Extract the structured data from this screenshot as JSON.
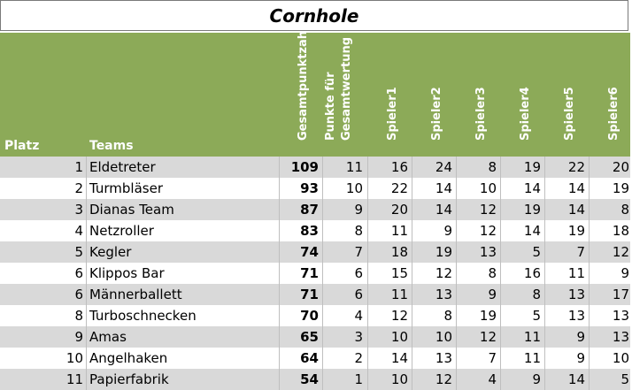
{
  "title": "Cornhole",
  "headers": {
    "platz": "Platz",
    "teams": "Teams",
    "gesamtpunktzahl": "Gesamtpunktzahl",
    "punkte_line1": "Punkte für",
    "punkte_line2": "Gesamtwertung",
    "spieler": [
      "Spieler1",
      "Spieler2",
      "Spieler3",
      "Spieler4",
      "Spieler5",
      "Spieler6"
    ]
  },
  "rows": [
    {
      "platz": "1",
      "team": "Eldetreter",
      "gesamt": "109",
      "punkte": "11",
      "s": [
        "16",
        "24",
        "8",
        "19",
        "22",
        "20"
      ]
    },
    {
      "platz": "2",
      "team": "Turmbläser",
      "gesamt": "93",
      "punkte": "10",
      "s": [
        "22",
        "14",
        "10",
        "14",
        "14",
        "19"
      ]
    },
    {
      "platz": "3",
      "team": "Dianas Team",
      "gesamt": "87",
      "punkte": "9",
      "s": [
        "20",
        "14",
        "12",
        "19",
        "14",
        "8"
      ]
    },
    {
      "platz": "4",
      "team": "Netzroller",
      "gesamt": "83",
      "punkte": "8",
      "s": [
        "11",
        "9",
        "12",
        "14",
        "19",
        "18"
      ]
    },
    {
      "platz": "5",
      "team": "Kegler",
      "gesamt": "74",
      "punkte": "7",
      "s": [
        "18",
        "19",
        "13",
        "5",
        "7",
        "12"
      ]
    },
    {
      "platz": "6",
      "team": "Klippos Bar",
      "gesamt": "71",
      "punkte": "6",
      "s": [
        "15",
        "12",
        "8",
        "16",
        "11",
        "9"
      ]
    },
    {
      "platz": "6",
      "team": "Männerballett",
      "gesamt": "71",
      "punkte": "6",
      "s": [
        "11",
        "13",
        "9",
        "8",
        "13",
        "17"
      ]
    },
    {
      "platz": "8",
      "team": "Turboschnecken",
      "gesamt": "70",
      "punkte": "4",
      "s": [
        "12",
        "8",
        "19",
        "5",
        "13",
        "13"
      ]
    },
    {
      "platz": "9",
      "team": "Amas",
      "gesamt": "65",
      "punkte": "3",
      "s": [
        "10",
        "10",
        "12",
        "11",
        "9",
        "13"
      ]
    },
    {
      "platz": "10",
      "team": "Angelhaken",
      "gesamt": "64",
      "punkte": "2",
      "s": [
        "14",
        "13",
        "7",
        "11",
        "9",
        "10"
      ]
    },
    {
      "platz": "11",
      "team": "Papierfabrik",
      "gesamt": "54",
      "punkte": "1",
      "s": [
        "10",
        "12",
        "4",
        "9",
        "14",
        "5"
      ]
    }
  ],
  "colors": {
    "header_green": "#8caa58",
    "band_gray": "#d9d9d9"
  }
}
